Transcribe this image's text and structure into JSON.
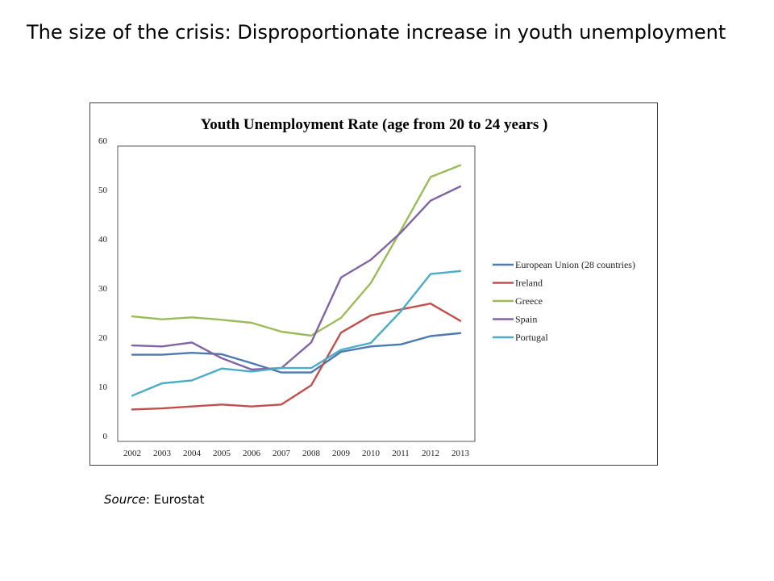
{
  "slide": {
    "title": "The size of the crisis: Disproportionate increase in youth unemployment",
    "source_label": "Source",
    "source_text": ": Eurostat"
  },
  "chart_data": {
    "type": "line",
    "title": "Youth Unemployment Rate (age from 20 to 24 years )",
    "xlabel": "",
    "ylabel": "",
    "x": [
      "2002",
      "2003",
      "2004",
      "2005",
      "2006",
      "2007",
      "2008",
      "2009",
      "2010",
      "2011",
      "2012",
      "2013"
    ],
    "ylim": [
      0,
      60
    ],
    "yticks": [
      0,
      10,
      20,
      30,
      40,
      50,
      60
    ],
    "grid": false,
    "legend_position": "right",
    "series": [
      {
        "name": "European Union (28 countries)",
        "color": "#4a7ab0",
        "values": [
          17.6,
          17.6,
          18.0,
          17.7,
          15.9,
          14.0,
          14.0,
          18.2,
          19.3,
          19.7,
          21.4,
          22.0
        ]
      },
      {
        "name": "Ireland",
        "color": "#c0504d",
        "values": [
          6.5,
          6.7,
          7.1,
          7.5,
          7.1,
          7.5,
          11.4,
          22.1,
          25.6,
          26.8,
          28.0,
          24.5
        ]
      },
      {
        "name": "Greece",
        "color": "#9bbb59",
        "values": [
          25.4,
          24.8,
          25.2,
          24.7,
          24.1,
          22.3,
          21.5,
          25.1,
          32.2,
          42.8,
          53.7,
          56.1
        ]
      },
      {
        "name": "Spain",
        "color": "#8064a2",
        "values": [
          19.5,
          19.3,
          20.1,
          16.9,
          14.6,
          14.9,
          20.1,
          33.3,
          36.9,
          42.4,
          48.9,
          51.8
        ]
      },
      {
        "name": "Portugal",
        "color": "#4bacc6",
        "values": [
          9.3,
          11.8,
          12.4,
          14.8,
          14.2,
          14.9,
          14.9,
          18.6,
          20.0,
          26.4,
          34.0,
          34.6
        ]
      }
    ]
  }
}
